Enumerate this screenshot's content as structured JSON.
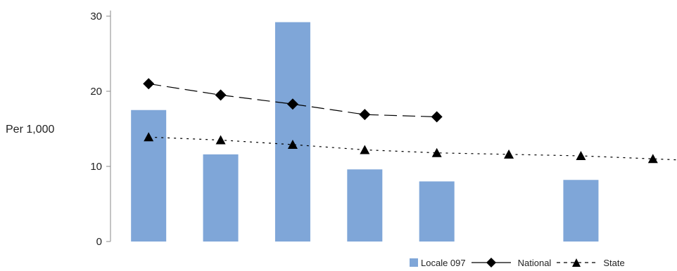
{
  "chart_data": {
    "type": "bar",
    "ylabel": "Per 1,000",
    "ylim": [
      0,
      30
    ],
    "yticks": [
      0,
      10,
      20,
      30
    ],
    "categories": [
      "",
      "",
      "",
      "",
      "",
      "",
      "",
      ""
    ],
    "series": [
      {
        "name": "Locale 097",
        "kind": "bar",
        "color": "#7fa6d8",
        "values": [
          17.5,
          11.6,
          29.2,
          9.6,
          8.0,
          null,
          8.2,
          null
        ]
      },
      {
        "name": "National",
        "kind": "line",
        "marker": "diamond",
        "dash": "long-dash",
        "color": "#000000",
        "values": [
          21.0,
          19.5,
          18.3,
          16.9,
          16.6,
          null,
          null,
          null
        ]
      },
      {
        "name": "State",
        "kind": "line",
        "marker": "triangle",
        "dash": "dotted",
        "color": "#000000",
        "values": [
          13.9,
          13.5,
          12.9,
          12.2,
          11.8,
          11.6,
          11.4,
          11.0
        ]
      }
    ],
    "legend_position": "bottom-right",
    "grid": false
  }
}
